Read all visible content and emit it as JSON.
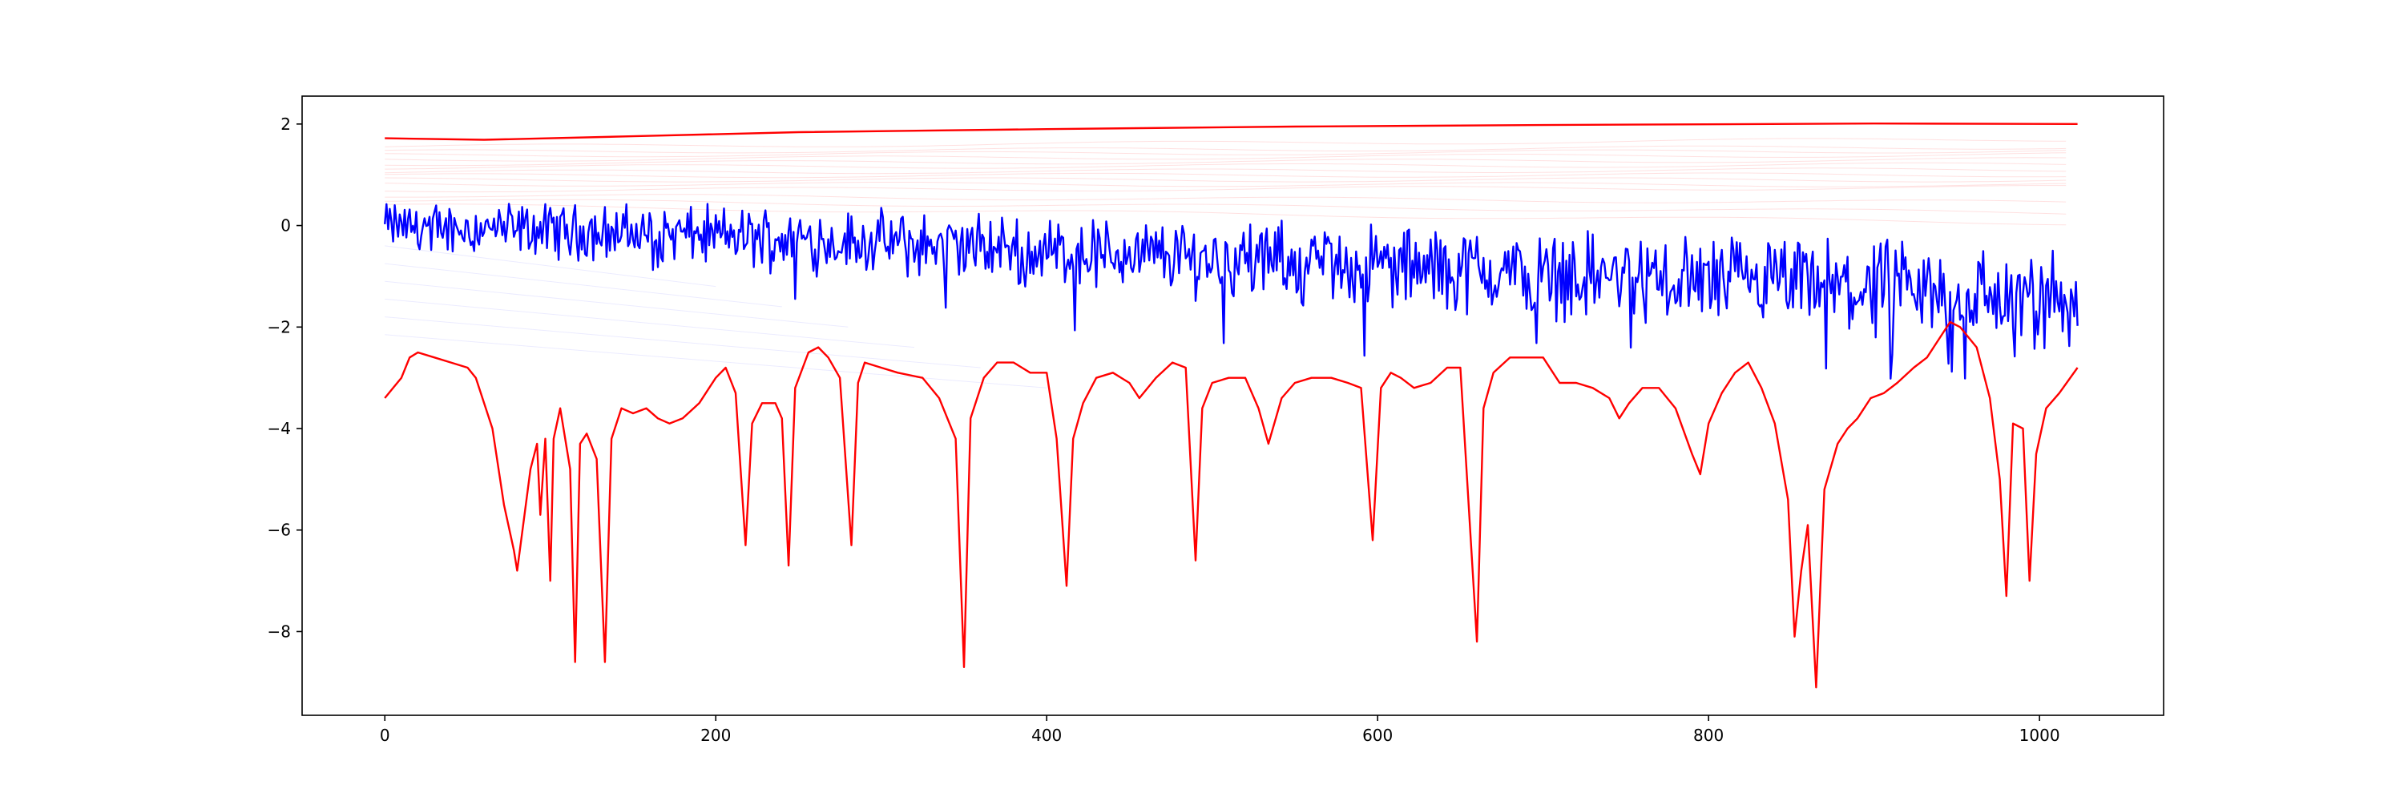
{
  "chart_data": {
    "type": "line",
    "title": "",
    "xlabel": "",
    "ylabel": "",
    "xlim": [
      -50,
      1075
    ],
    "ylim": [
      -9.65,
      2.55
    ],
    "grid": false,
    "x_ticks": [
      0,
      200,
      400,
      600,
      800,
      1000
    ],
    "y_ticks": [
      2,
      0,
      -2,
      -4,
      -6,
      -8
    ],
    "x_tick_labels": [
      "0",
      "200",
      "400",
      "600",
      "800",
      "1000"
    ],
    "y_tick_labels": [
      "2",
      "0",
      "−2",
      "−4",
      "−6",
      "−8"
    ],
    "n_points": 1024,
    "series": [
      {
        "color": "#ff0000",
        "style": "smooth-top",
        "points": [
          [
            0,
            1.72
          ],
          [
            60,
            1.69
          ],
          [
            150,
            1.76
          ],
          [
            250,
            1.84
          ],
          [
            400,
            1.9
          ],
          [
            550,
            1.95
          ],
          [
            700,
            1.98
          ],
          [
            900,
            2.01
          ],
          [
            1023,
            2.0
          ]
        ]
      },
      {
        "color": "#0000ff",
        "style": "noisy",
        "trend": [
          [
            0,
            0.0
          ],
          [
            200,
            -0.2
          ],
          [
            400,
            -0.5
          ],
          [
            600,
            -0.8
          ],
          [
            800,
            -1.1
          ],
          [
            1023,
            -1.5
          ]
        ],
        "amplitude_start": 0.35,
        "amplitude_end": 0.75
      },
      {
        "color": "#ff0000",
        "style": "spiky-bottom",
        "points": [
          [
            0,
            -3.4
          ],
          [
            5,
            -3.2
          ],
          [
            10,
            -3.0
          ],
          [
            15,
            -2.6
          ],
          [
            20,
            -2.5
          ],
          [
            30,
            -2.6
          ],
          [
            40,
            -2.7
          ],
          [
            50,
            -2.8
          ],
          [
            55,
            -3.0
          ],
          [
            65,
            -4.0
          ],
          [
            72,
            -5.5
          ],
          [
            78,
            -6.4
          ],
          [
            80,
            -6.8
          ],
          [
            84,
            -5.8
          ],
          [
            88,
            -4.8
          ],
          [
            92,
            -4.3
          ],
          [
            94,
            -5.7
          ],
          [
            97,
            -4.2
          ],
          [
            100,
            -7.0
          ],
          [
            102,
            -4.2
          ],
          [
            106,
            -3.6
          ],
          [
            112,
            -4.8
          ],
          [
            115,
            -8.6
          ],
          [
            118,
            -4.3
          ],
          [
            122,
            -4.1
          ],
          [
            128,
            -4.6
          ],
          [
            133,
            -8.6
          ],
          [
            137,
            -4.2
          ],
          [
            143,
            -3.6
          ],
          [
            150,
            -3.7
          ],
          [
            158,
            -3.6
          ],
          [
            165,
            -3.8
          ],
          [
            172,
            -3.9
          ],
          [
            180,
            -3.8
          ],
          [
            190,
            -3.5
          ],
          [
            200,
            -3.0
          ],
          [
            206,
            -2.8
          ],
          [
            212,
            -3.3
          ],
          [
            218,
            -6.3
          ],
          [
            222,
            -3.9
          ],
          [
            228,
            -3.5
          ],
          [
            236,
            -3.5
          ],
          [
            240,
            -3.8
          ],
          [
            244,
            -6.7
          ],
          [
            248,
            -3.2
          ],
          [
            256,
            -2.5
          ],
          [
            262,
            -2.4
          ],
          [
            268,
            -2.6
          ],
          [
            275,
            -3.0
          ],
          [
            282,
            -6.3
          ],
          [
            286,
            -3.1
          ],
          [
            290,
            -2.7
          ],
          [
            300,
            -2.8
          ],
          [
            310,
            -2.9
          ],
          [
            325,
            -3.0
          ],
          [
            335,
            -3.4
          ],
          [
            345,
            -4.2
          ],
          [
            350,
            -8.7
          ],
          [
            354,
            -3.8
          ],
          [
            362,
            -3.0
          ],
          [
            370,
            -2.7
          ],
          [
            380,
            -2.7
          ],
          [
            390,
            -2.9
          ],
          [
            400,
            -2.9
          ],
          [
            406,
            -4.2
          ],
          [
            412,
            -7.1
          ],
          [
            416,
            -4.2
          ],
          [
            422,
            -3.5
          ],
          [
            430,
            -3.0
          ],
          [
            440,
            -2.9
          ],
          [
            450,
            -3.1
          ],
          [
            456,
            -3.4
          ],
          [
            466,
            -3.0
          ],
          [
            476,
            -2.7
          ],
          [
            484,
            -2.8
          ],
          [
            490,
            -6.6
          ],
          [
            494,
            -3.6
          ],
          [
            500,
            -3.1
          ],
          [
            510,
            -3.0
          ],
          [
            520,
            -3.0
          ],
          [
            528,
            -3.6
          ],
          [
            534,
            -4.3
          ],
          [
            542,
            -3.4
          ],
          [
            550,
            -3.1
          ],
          [
            560,
            -3.0
          ],
          [
            572,
            -3.0
          ],
          [
            582,
            -3.1
          ],
          [
            590,
            -3.2
          ],
          [
            597,
            -6.2
          ],
          [
            602,
            -3.2
          ],
          [
            608,
            -2.9
          ],
          [
            614,
            -3.0
          ],
          [
            622,
            -3.2
          ],
          [
            632,
            -3.1
          ],
          [
            642,
            -2.8
          ],
          [
            650,
            -2.8
          ],
          [
            660,
            -8.2
          ],
          [
            664,
            -3.6
          ],
          [
            670,
            -2.9
          ],
          [
            680,
            -2.6
          ],
          [
            690,
            -2.6
          ],
          [
            700,
            -2.6
          ],
          [
            710,
            -3.1
          ],
          [
            720,
            -3.1
          ],
          [
            730,
            -3.2
          ],
          [
            740,
            -3.4
          ],
          [
            746,
            -3.8
          ],
          [
            752,
            -3.5
          ],
          [
            760,
            -3.2
          ],
          [
            770,
            -3.2
          ],
          [
            780,
            -3.6
          ],
          [
            790,
            -4.5
          ],
          [
            795,
            -4.9
          ],
          [
            800,
            -3.9
          ],
          [
            808,
            -3.3
          ],
          [
            816,
            -2.9
          ],
          [
            824,
            -2.7
          ],
          [
            832,
            -3.2
          ],
          [
            840,
            -3.9
          ],
          [
            848,
            -5.4
          ],
          [
            852,
            -8.1
          ],
          [
            856,
            -6.8
          ],
          [
            860,
            -5.9
          ],
          [
            865,
            -9.1
          ],
          [
            870,
            -5.2
          ],
          [
            878,
            -4.3
          ],
          [
            884,
            -4.0
          ],
          [
            890,
            -3.8
          ],
          [
            898,
            -3.4
          ],
          [
            906,
            -3.3
          ],
          [
            914,
            -3.1
          ],
          [
            924,
            -2.8
          ],
          [
            932,
            -2.6
          ],
          [
            940,
            -2.2
          ],
          [
            946,
            -1.9
          ],
          [
            952,
            -2.0
          ],
          [
            962,
            -2.4
          ],
          [
            970,
            -3.4
          ],
          [
            976,
            -5.0
          ],
          [
            980,
            -7.3
          ],
          [
            984,
            -3.9
          ],
          [
            990,
            -4.0
          ],
          [
            994,
            -7.0
          ],
          [
            998,
            -4.5
          ],
          [
            1004,
            -3.6
          ],
          [
            1012,
            -3.3
          ],
          [
            1023,
            -2.8
          ]
        ]
      }
    ],
    "faint_series": {
      "color": "#ff0000",
      "count": 14,
      "start_values": [
        1.55,
        1.45,
        1.38,
        1.3,
        1.22,
        1.15,
        1.05,
        0.98,
        0.9,
        0.82,
        0.7,
        0.6,
        0.5,
        0.4
      ],
      "end_values": [
        1.7,
        1.55,
        1.48,
        1.4,
        1.3,
        1.2,
        1.1,
        1.0,
        0.9,
        0.8,
        0.75,
        0.45,
        0.25,
        0.05
      ]
    }
  }
}
